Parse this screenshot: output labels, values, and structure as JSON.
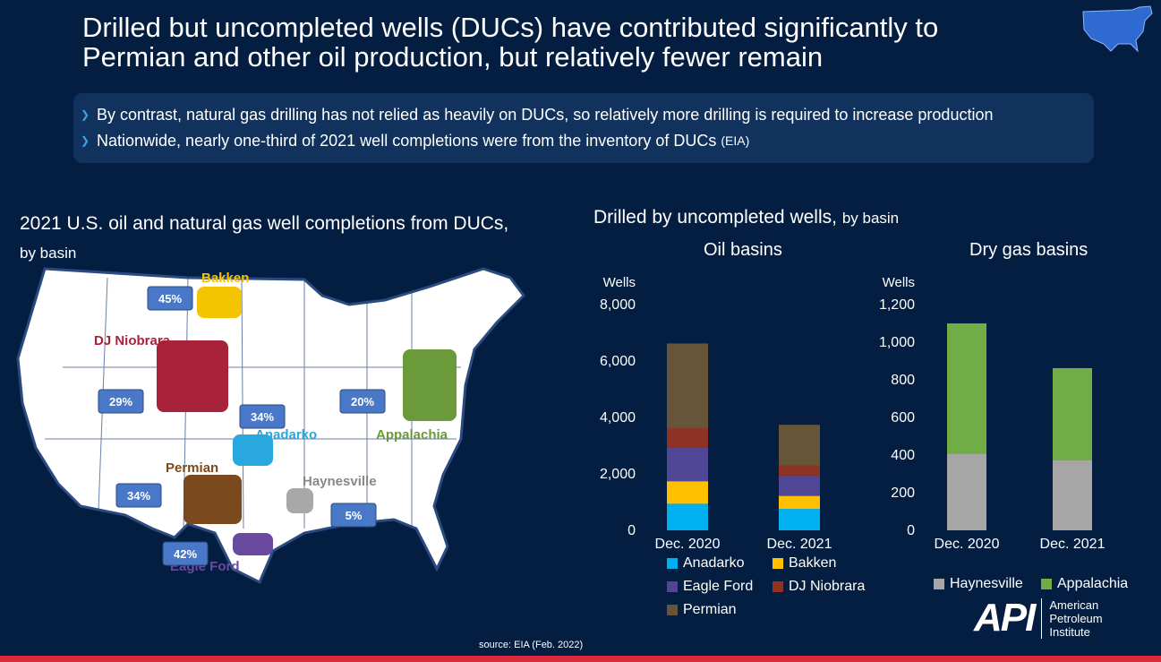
{
  "title": "Drilled but uncompleted wells (DUCs) have contributed significantly to Permian and other oil production, but relatively fewer remain",
  "bullets": [
    {
      "text": "By contrast, natural gas drilling has not relied as heavily on DUCs, so relatively more drilling is required to increase production",
      "note": ""
    },
    {
      "text": "Nationwide, nearly one-third of 2021 well completions were from the inventory of DUCs",
      "note": "(EIA)"
    }
  ],
  "map": {
    "title": "2021 U.S. oil and natural gas well completions from DUCs,",
    "title_suffix": "by basin",
    "basins": [
      {
        "name": "Bakken",
        "pct": "45%",
        "color": "#f5c400"
      },
      {
        "name": "DJ Niobrara",
        "pct": "29%",
        "color": "#a8233a"
      },
      {
        "name": "Anadarko",
        "pct": "34%",
        "color": "#29a8e0"
      },
      {
        "name": "Appalachia",
        "pct": "20%",
        "color": "#6a9a3a"
      },
      {
        "name": "Permian",
        "pct": "34%",
        "color": "#7a4a1e"
      },
      {
        "name": "Haynesville",
        "pct": "5%",
        "color": "#a8a8a8"
      },
      {
        "name": "Eagle Ford",
        "pct": "42%",
        "color": "#6a4aa0"
      }
    ]
  },
  "charts_title": "Drilled by uncompleted wells,",
  "charts_title_suffix": "by basin",
  "chart_data": [
    {
      "type": "bar",
      "stacked": true,
      "title": "Oil basins",
      "ylabel": "Wells",
      "ylim": [
        0,
        8000
      ],
      "yticks": [
        "0",
        "2,000",
        "4,000",
        "6,000",
        "8,000"
      ],
      "categories": [
        "Dec. 2020",
        "Dec. 2021"
      ],
      "series": [
        {
          "name": "Anadarko",
          "color": "#00b0f0",
          "values": [
            940,
            760
          ]
        },
        {
          "name": "Bakken",
          "color": "#ffc000",
          "values": [
            800,
            460
          ]
        },
        {
          "name": "Eagle Ford",
          "color": "#514595",
          "values": [
            1200,
            720
          ]
        },
        {
          "name": "DJ Niobrara",
          "color": "#8e3224",
          "values": [
            680,
            350
          ]
        },
        {
          "name": "Permian",
          "color": "#67553a",
          "values": [
            3000,
            1450
          ]
        }
      ]
    },
    {
      "type": "bar",
      "stacked": true,
      "title": "Dry gas basins",
      "ylabel": "Wells",
      "ylim": [
        0,
        1200
      ],
      "yticks": [
        "0",
        "200",
        "400",
        "600",
        "800",
        "1,000",
        "1,200"
      ],
      "categories": [
        "Dec. 2020",
        "Dec. 2021"
      ],
      "series": [
        {
          "name": "Haynesville",
          "color": "#a6a6a6",
          "values": [
            407,
            375
          ]
        },
        {
          "name": "Appalachia",
          "color": "#70ad47",
          "values": [
            693,
            487
          ]
        }
      ]
    }
  ],
  "source": "source: EIA (Feb. 2022)",
  "logo": {
    "mark": "API",
    "name_lines": [
      "American",
      "Petroleum",
      "Institute"
    ]
  }
}
